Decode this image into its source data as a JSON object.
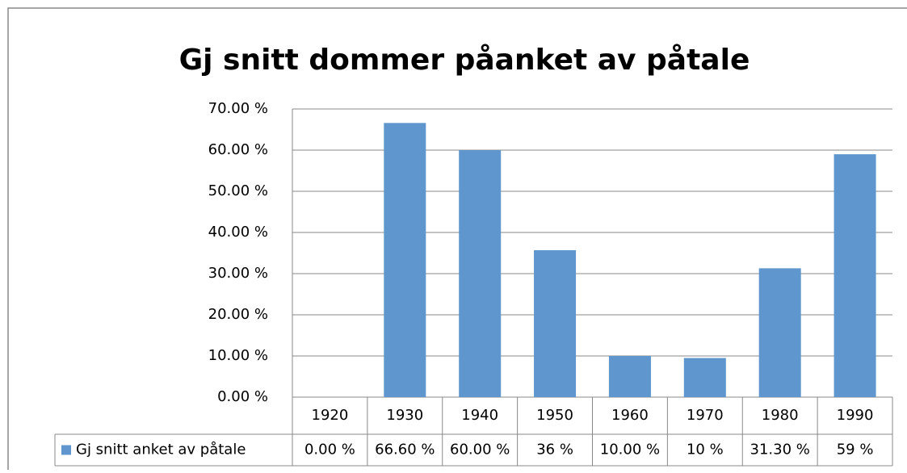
{
  "chart_data": {
    "type": "bar",
    "title": "Gj snitt dommer påanket av påtale",
    "categories": [
      "1920",
      "1930",
      "1940",
      "1950",
      "1960",
      "1970",
      "1980",
      "1990"
    ],
    "series": [
      {
        "name": "Gj snitt anket av påtale",
        "color": "#5f96cd",
        "values": [
          0,
          66.6,
          60,
          35.7,
          10,
          9.5,
          31.3,
          59
        ],
        "value_labels": [
          "0.00 %",
          "66.60 %",
          "60.00 %",
          "36 %",
          "10.00 %",
          "10 %",
          "31.30 %",
          "59 %"
        ]
      }
    ],
    "ylim": [
      0,
      70
    ],
    "yticks": [
      {
        "value": 0,
        "label": "0.00 %"
      },
      {
        "value": 10,
        "label": "10.00 %"
      },
      {
        "value": 20,
        "label": "20.00 %"
      },
      {
        "value": 30,
        "label": "30.00 %"
      },
      {
        "value": 40,
        "label": "40.00 %"
      },
      {
        "value": 50,
        "label": "50.00 %"
      },
      {
        "value": 60,
        "label": "60.00 %"
      },
      {
        "value": 70,
        "label": "70.00 %"
      }
    ],
    "grid": true,
    "data_table": true
  }
}
